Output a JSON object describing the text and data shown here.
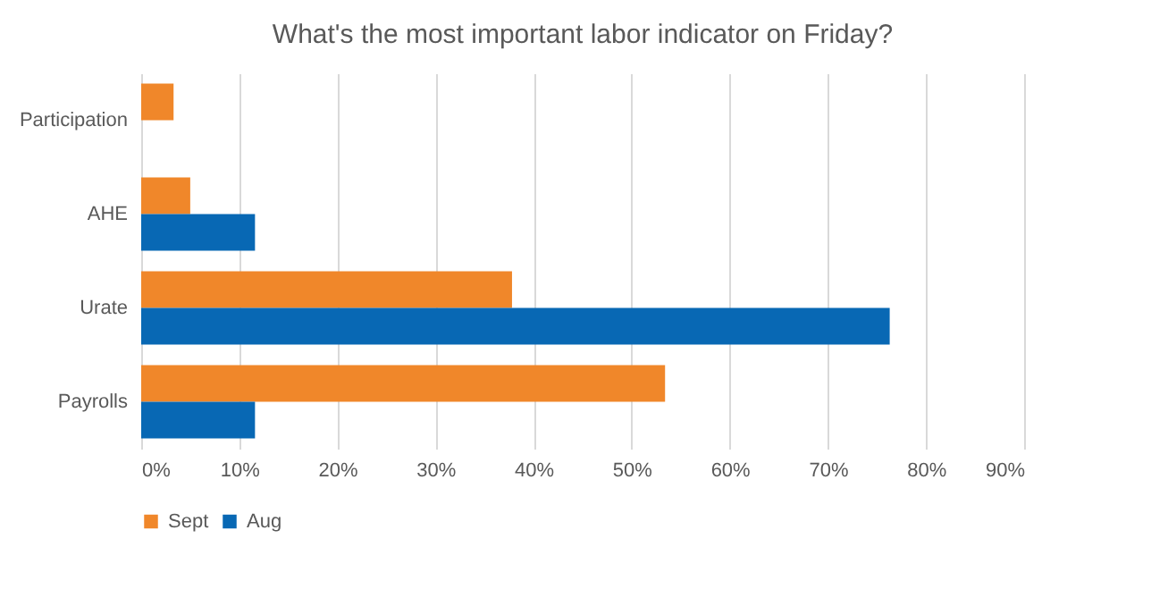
{
  "chart_data": {
    "type": "bar",
    "orientation": "horizontal",
    "title": "What's the most important labor indicator on Friday?",
    "categories": [
      "Participation",
      "AHE",
      "Urate",
      "Payrolls"
    ],
    "series": [
      {
        "name": "Sept",
        "color": "#f0872a",
        "values": [
          3.3,
          5.0,
          37.8,
          53.4
        ]
      },
      {
        "name": "Aug",
        "color": "#0868b4",
        "values": [
          0,
          11.6,
          76.3,
          11.6
        ]
      }
    ],
    "xlim": [
      0,
      90
    ],
    "xticks": [
      {
        "value": 0,
        "label": "0%"
      },
      {
        "value": 10,
        "label": "10%"
      },
      {
        "value": 20,
        "label": "20%"
      },
      {
        "value": 30,
        "label": "30%"
      },
      {
        "value": 40,
        "label": "40%"
      },
      {
        "value": 50,
        "label": "50%"
      },
      {
        "value": 60,
        "label": "60%"
      },
      {
        "value": 70,
        "label": "70%"
      },
      {
        "value": 80,
        "label": "80%"
      },
      {
        "value": 90,
        "label": "90%"
      }
    ],
    "grid": "x",
    "legend": "bottom"
  }
}
